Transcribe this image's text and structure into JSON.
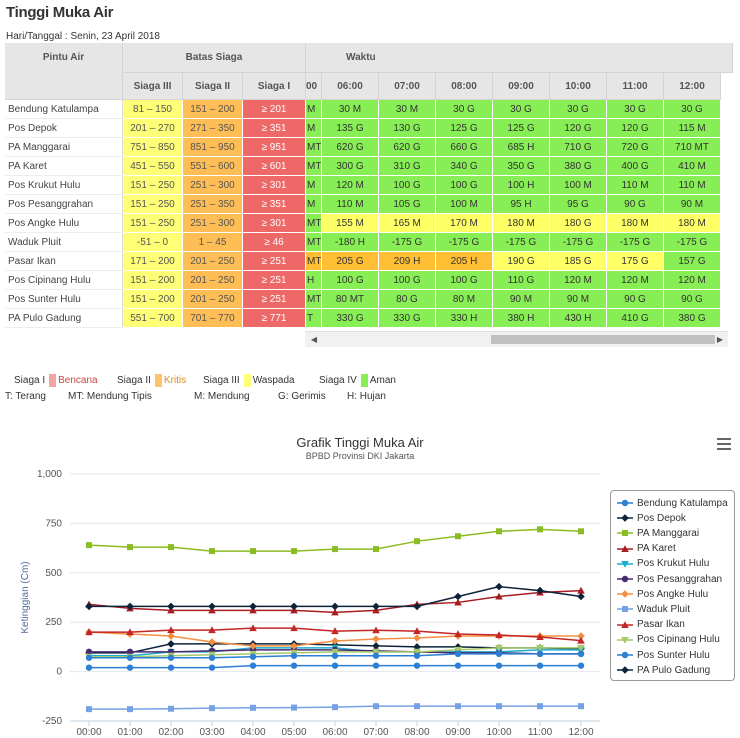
{
  "page": {
    "title": "Tinggi Muka Air",
    "date_line": "Hari/Tanggal : Senin, 23 April 2018"
  },
  "table": {
    "header": {
      "pintu_air": "Pintu Air",
      "batas_siaga": "Batas Siaga",
      "waktu": "Waktu",
      "siaga3": "Siaga III",
      "siaga2": "Siaga II",
      "siaga1": "Siaga I"
    },
    "times": [
      "00",
      "06:00",
      "07:00",
      "08:00",
      "09:00",
      "10:00",
      "11:00",
      "12:00"
    ],
    "rows": [
      {
        "name": "Bendung Katulampa",
        "s3": "81 – 150",
        "s2": "151 – 200",
        "s1": "≥ 201",
        "first": "M",
        "vals": [
          "30 M",
          "30 M",
          "30 G",
          "30 G",
          "30 G",
          "30 G",
          "30 G"
        ],
        "status": [
          "aman",
          "aman",
          "aman",
          "aman",
          "aman",
          "aman",
          "aman",
          "aman"
        ]
      },
      {
        "name": "Pos Depok",
        "s3": "201 – 270",
        "s2": "271 – 350",
        "s1": "≥ 351",
        "first": "M",
        "vals": [
          "135 G",
          "130 G",
          "125 G",
          "125 G",
          "120 G",
          "120 G",
          "115 M"
        ],
        "status": [
          "aman",
          "aman",
          "aman",
          "aman",
          "aman",
          "aman",
          "aman",
          "aman"
        ]
      },
      {
        "name": "PA Manggarai",
        "s3": "751 – 850",
        "s2": "851 – 950",
        "s1": "≥ 951",
        "first": "MT",
        "vals": [
          "620 G",
          "620 G",
          "660 G",
          "685 H",
          "710 G",
          "720 G",
          "710 MT"
        ],
        "status": [
          "aman",
          "aman",
          "aman",
          "aman",
          "aman",
          "aman",
          "aman",
          "aman"
        ]
      },
      {
        "name": "PA Karet",
        "s3": "451 – 550",
        "s2": "551 – 600",
        "s1": "≥ 601",
        "first": "MT",
        "vals": [
          "300 G",
          "310 G",
          "340 G",
          "350 G",
          "380 G",
          "400 G",
          "410 M"
        ],
        "status": [
          "aman",
          "aman",
          "aman",
          "aman",
          "aman",
          "aman",
          "aman",
          "aman"
        ]
      },
      {
        "name": "Pos Krukut Hulu",
        "s3": "151 – 250",
        "s2": "251 – 300",
        "s1": "≥ 301",
        "first": "M",
        "vals": [
          "120 M",
          "100 G",
          "100 G",
          "100 H",
          "100 M",
          "110 M",
          "110 M"
        ],
        "status": [
          "aman",
          "aman",
          "aman",
          "aman",
          "aman",
          "aman",
          "aman",
          "aman"
        ]
      },
      {
        "name": "Pos Pesanggrahan",
        "s3": "151 – 250",
        "s2": "251 – 350",
        "s1": "≥ 351",
        "first": "M",
        "vals": [
          "110 M",
          "105 G",
          "100 M",
          "95 H",
          "95 G",
          "90 G",
          "90 M"
        ],
        "status": [
          "aman",
          "aman",
          "aman",
          "aman",
          "aman",
          "aman",
          "aman",
          "aman"
        ]
      },
      {
        "name": "Pos Angke Hulu",
        "s3": "151 – 250",
        "s2": "251 – 300",
        "s1": "≥ 301",
        "first": "MT",
        "vals": [
          "155 M",
          "165 M",
          "170 M",
          "180 M",
          "180 G",
          "180 M",
          "180 M"
        ],
        "status": [
          "aman",
          "waspada",
          "waspada",
          "waspada",
          "waspada",
          "waspada",
          "waspada",
          "waspada"
        ]
      },
      {
        "name": "Waduk Pluit",
        "s3": "-51 – 0",
        "s2": "1 – 45",
        "s1": "≥ 46",
        "first": "MT",
        "vals": [
          "-180 H",
          "-175 G",
          "-175 G",
          "-175 G",
          "-175 G",
          "-175 G",
          "-175 G"
        ],
        "status": [
          "aman",
          "aman",
          "aman",
          "aman",
          "aman",
          "aman",
          "aman",
          "aman"
        ]
      },
      {
        "name": "Pasar Ikan",
        "s3": "171 – 200",
        "s2": "201 – 250",
        "s1": "≥ 251",
        "first": "MT",
        "vals": [
          "205 G",
          "209 H",
          "205 H",
          "190 G",
          "185 G",
          "175 G",
          "157 G"
        ],
        "status": [
          "kritis",
          "kritis",
          "kritis",
          "kritis",
          "waspada",
          "waspada",
          "waspada",
          "aman"
        ]
      },
      {
        "name": "Pos Cipinang Hulu",
        "s3": "151 – 200",
        "s2": "201 – 250",
        "s1": "≥ 251",
        "first": "H",
        "vals": [
          "100 G",
          "100 G",
          "100 G",
          "110 G",
          "120 M",
          "120 M",
          "120 M"
        ],
        "status": [
          "aman",
          "aman",
          "aman",
          "aman",
          "aman",
          "aman",
          "aman",
          "aman"
        ]
      },
      {
        "name": "Pos Sunter Hulu",
        "s3": "151 – 200",
        "s2": "201 – 250",
        "s1": "≥ 251",
        "first": "MT",
        "vals": [
          "80 MT",
          "80 G",
          "80 M",
          "90 M",
          "90 M",
          "90 G",
          "90 G"
        ],
        "status": [
          "aman",
          "aman",
          "aman",
          "aman",
          "aman",
          "aman",
          "aman",
          "aman"
        ]
      },
      {
        "name": "PA Pulo Gadung",
        "s3": "551 – 700",
        "s2": "701 – 770",
        "s1": "≥ 771",
        "first": "T",
        "vals": [
          "330 G",
          "330 G",
          "330 H",
          "380 H",
          "430 H",
          "410 G",
          "380 G"
        ],
        "status": [
          "aman",
          "aman",
          "aman",
          "aman",
          "aman",
          "aman",
          "aman",
          "aman"
        ]
      }
    ]
  },
  "legend_status": [
    {
      "label": "Siaga I",
      "desc": "Bencana",
      "color": "#f4a3a3"
    },
    {
      "label": "Siaga II",
      "desc": "Kritis",
      "color": "#ffc46b"
    },
    {
      "label": "Siaga III",
      "desc": "Waspada",
      "color": "#ffff77"
    },
    {
      "label": "Siaga IV",
      "desc": "Aman",
      "color": "#88ee55"
    }
  ],
  "legend_weather": [
    "T: Terang",
    "MT: Mendung Tipis",
    "M: Mendung",
    "G: Gerimis",
    "H: Hujan"
  ],
  "colors": {
    "aman": "#88ee55",
    "waspada": "#ffff66",
    "kritis": "#ffbe33",
    "bencana": "#ee6868"
  },
  "chart_data": {
    "type": "line",
    "title": "Grafik Tinggi Muka Air",
    "subtitle": "BPBD Provinsi DKI Jakarta",
    "ylabel": "Ketinggian (Cm)",
    "xlabel": "",
    "ylim": [
      -250,
      1000
    ],
    "yticks": [
      "1,000",
      "750",
      "500",
      "250",
      "0",
      "-250"
    ],
    "yticks_values": [
      1000,
      750,
      500,
      250,
      0,
      -250
    ],
    "categories": [
      "00:00",
      "01:00",
      "02:00",
      "03:00",
      "04:00",
      "05:00",
      "06:00",
      "07:00",
      "08:00",
      "09:00",
      "10:00",
      "11:00",
      "12:00"
    ],
    "series": [
      {
        "name": "Bendung Katulampa",
        "color": "#2b7fd4",
        "marker": "circle",
        "values": [
          20,
          20,
          20,
          20,
          30,
          30,
          30,
          30,
          30,
          30,
          30,
          30,
          30
        ]
      },
      {
        "name": "Pos Depok",
        "color": "#0d233a",
        "marker": "diamond",
        "values": [
          95,
          95,
          140,
          140,
          140,
          140,
          135,
          130,
          125,
          125,
          120,
          120,
          115
        ]
      },
      {
        "name": "PA Manggarai",
        "color": "#8bbc21",
        "marker": "square",
        "values": [
          640,
          630,
          630,
          610,
          610,
          610,
          620,
          620,
          660,
          685,
          710,
          720,
          710
        ]
      },
      {
        "name": "PA Karet",
        "color": "#a71d22",
        "marker": "triangle",
        "values": [
          340,
          320,
          310,
          310,
          310,
          310,
          300,
          310,
          340,
          350,
          380,
          400,
          410
        ]
      },
      {
        "name": "Pos Krukut Hulu",
        "color": "#1aadce",
        "marker": "triangle-down",
        "values": [
          80,
          80,
          100,
          100,
          120,
          120,
          120,
          100,
          100,
          100,
          100,
          110,
          110
        ]
      },
      {
        "name": "Pos Pesanggrahan",
        "color": "#492970",
        "marker": "circle",
        "values": [
          100,
          100,
          100,
          105,
          110,
          110,
          110,
          105,
          100,
          95,
          95,
          90,
          90
        ]
      },
      {
        "name": "Pos Angke Hulu",
        "color": "#f28f43",
        "marker": "diamond",
        "values": [
          200,
          190,
          180,
          150,
          130,
          130,
          155,
          165,
          170,
          180,
          180,
          180,
          180
        ]
      },
      {
        "name": "Waduk Pluit",
        "color": "#77a1e5",
        "marker": "square",
        "values": [
          -190,
          -190,
          -188,
          -185,
          -183,
          -182,
          -180,
          -175,
          -175,
          -175,
          -175,
          -175,
          -175
        ]
      },
      {
        "name": "Pasar Ikan",
        "color": "#c42525",
        "marker": "triangle",
        "values": [
          200,
          200,
          210,
          210,
          220,
          220,
          205,
          209,
          205,
          190,
          185,
          175,
          157
        ]
      },
      {
        "name": "Pos Cipinang Hulu",
        "color": "#a6c96a",
        "marker": "triangle-down",
        "values": [
          75,
          75,
          80,
          85,
          90,
          95,
          100,
          100,
          100,
          110,
          120,
          120,
          120
        ]
      },
      {
        "name": "Pos Sunter Hulu",
        "color": "#2b7fd4",
        "marker": "circle",
        "values": [
          70,
          70,
          70,
          70,
          75,
          80,
          80,
          80,
          80,
          90,
          90,
          90,
          90
        ]
      },
      {
        "name": "PA Pulo Gadung",
        "color": "#0d233a",
        "marker": "diamond",
        "values": [
          330,
          330,
          330,
          330,
          330,
          330,
          330,
          330,
          330,
          380,
          430,
          410,
          380
        ]
      }
    ]
  }
}
